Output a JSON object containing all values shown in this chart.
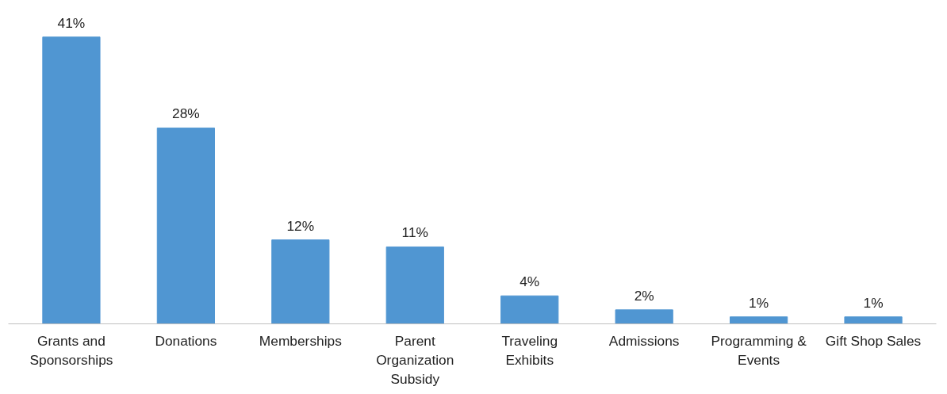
{
  "chart_data": {
    "type": "bar",
    "categories": [
      "Grants and Sponsorships",
      "Donations",
      "Memberships",
      "Parent Organization Subsidy",
      "Traveling Exhibits",
      "Admissions",
      "Programming & Events",
      "Gift Shop Sales"
    ],
    "values": [
      41,
      28,
      12,
      11,
      4,
      2,
      1,
      1
    ],
    "value_labels": [
      "41%",
      "28%",
      "12%",
      "11%",
      "4%",
      "2%",
      "1%",
      "1%"
    ],
    "color": "#5096d2"
  }
}
